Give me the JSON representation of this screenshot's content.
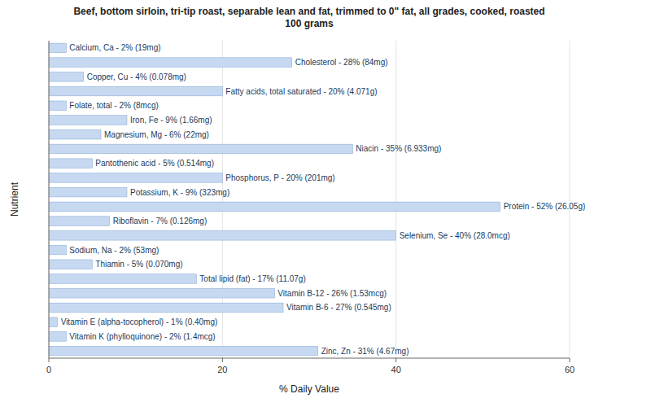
{
  "chart_data": {
    "type": "bar",
    "orientation": "horizontal",
    "title": "Beef, bottom sirloin, tri-tip roast, separable lean and fat, trimmed to 0\" fat, all grades, cooked, roasted\n100 grams",
    "xlabel": "% Daily Value",
    "ylabel": "Nutrient",
    "categories": [
      "Calcium, Ca - 2% (19mg)",
      "Cholesterol - 28% (84mg)",
      "Copper, Cu - 4% (0.078mg)",
      "Fatty acids, total saturated - 20% (4.071g)",
      "Folate, total - 2% (8mcg)",
      "Iron, Fe - 9% (1.66mg)",
      "Magnesium, Mg - 6% (22mg)",
      "Niacin - 35% (6.933mg)",
      "Pantothenic acid - 5% (0.514mg)",
      "Phosphorus, P - 20% (201mg)",
      "Potassium, K - 9% (323mg)",
      "Protein - 52% (26.05g)",
      "Riboflavin - 7% (0.126mg)",
      "Selenium, Se - 40% (28.0mcg)",
      "Sodium, Na - 2% (53mg)",
      "Thiamin - 5% (0.070mg)",
      "Total lipid (fat) - 17% (11.07g)",
      "Vitamin B-12 - 26% (1.53mcg)",
      "Vitamin B-6 - 27% (0.545mg)",
      "Vitamin E (alpha-tocopherol) - 1% (0.40mg)",
      "Vitamin K (phylloquinone) - 2% (1.4mcg)",
      "Zinc, Zn - 31% (4.67mg)"
    ],
    "values": [
      2,
      28,
      4,
      20,
      2,
      9,
      6,
      35,
      5,
      20,
      9,
      52,
      7,
      40,
      2,
      5,
      17,
      26,
      27,
      1,
      2,
      31
    ],
    "color": "#c6d9f1",
    "xlim": [
      0,
      60
    ],
    "xticks": [
      0,
      20,
      40,
      60
    ],
    "grid": true
  }
}
